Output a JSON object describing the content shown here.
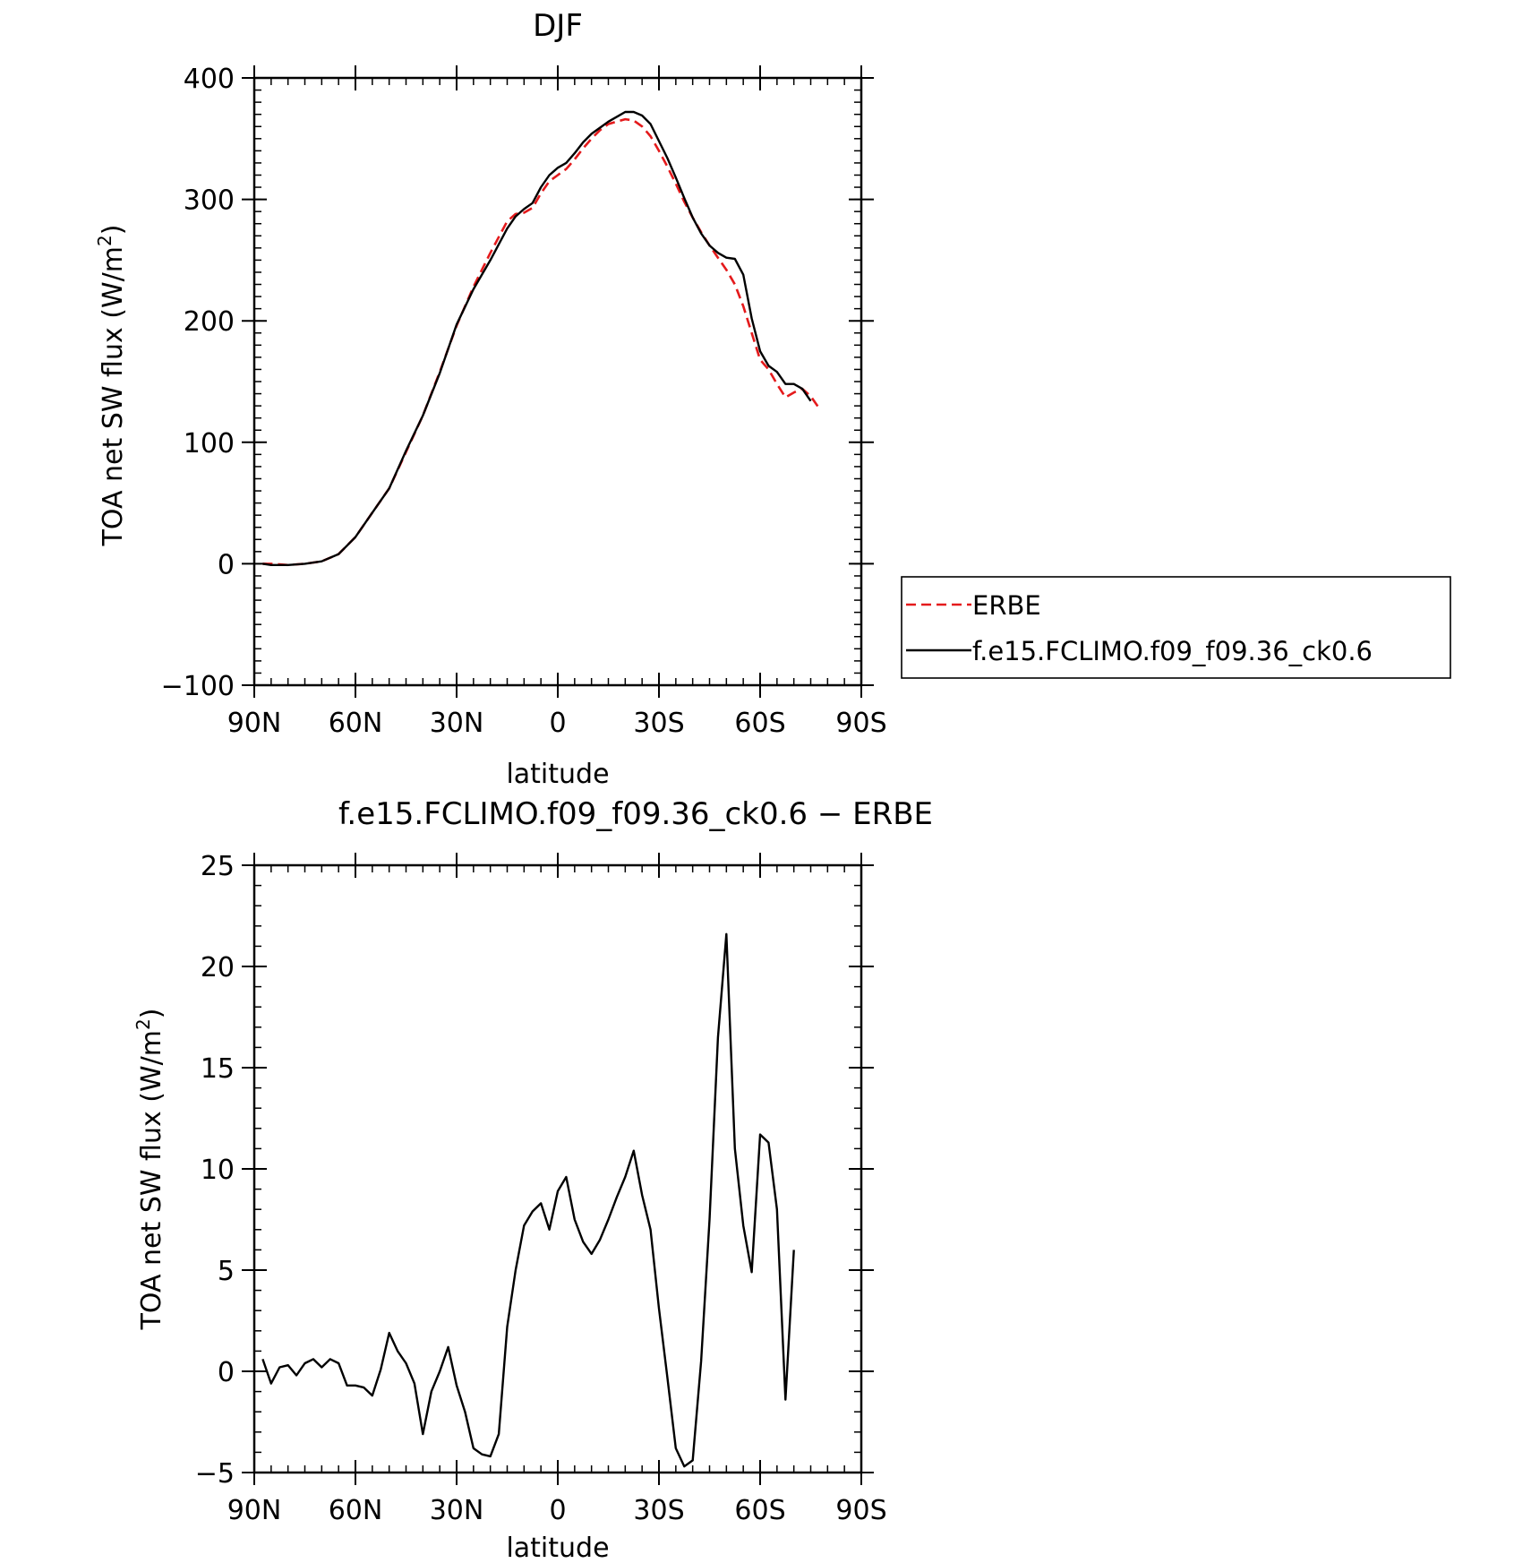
{
  "chart_data": [
    {
      "type": "line",
      "title": "DJF",
      "xlabel": "latitude",
      "ylabel": "TOA net SW flux (W/m²)",
      "ylabel_main": "TOA net SW flux (W/m",
      "ylabel_sup": "2",
      "ylabel_end": ")",
      "xlim": [
        -90,
        90
      ],
      "ylim": [
        -100,
        400
      ],
      "x_ticks": [
        {
          "value": -90,
          "label": "90N"
        },
        {
          "value": -60,
          "label": "60N"
        },
        {
          "value": -30,
          "label": "30N"
        },
        {
          "value": 0,
          "label": "0"
        },
        {
          "value": 30,
          "label": "30S"
        },
        {
          "value": 60,
          "label": "60S"
        },
        {
          "value": 90,
          "label": "90S"
        }
      ],
      "y_ticks": [
        {
          "value": -100,
          "label": "−100"
        },
        {
          "value": 0,
          "label": "0"
        },
        {
          "value": 100,
          "label": "100"
        },
        {
          "value": 200,
          "label": "200"
        },
        {
          "value": 300,
          "label": "300"
        },
        {
          "value": 400,
          "label": "400"
        }
      ],
      "legend": "right",
      "series": [
        {
          "name": "ERBE",
          "color": "#e41a1c",
          "dash": true,
          "points": [
            [
              -87.5,
              0
            ],
            [
              -85,
              0
            ],
            [
              -80,
              -1
            ],
            [
              -75,
              0
            ],
            [
              -70,
              2
            ],
            [
              -65,
              8
            ],
            [
              -60,
              22
            ],
            [
              -55,
              42
            ],
            [
              -50,
              62
            ],
            [
              -45,
              92
            ],
            [
              -40,
              122
            ],
            [
              -35,
              158
            ],
            [
              -30,
              196
            ],
            [
              -25,
              228
            ],
            [
              -20,
              256
            ],
            [
              -15,
              282
            ],
            [
              -12.5,
              288
            ],
            [
              -10,
              289
            ],
            [
              -7.5,
              293
            ],
            [
              -5,
              305
            ],
            [
              -2.5,
              315
            ],
            [
              0,
              320
            ],
            [
              2.5,
              325
            ],
            [
              5,
              333
            ],
            [
              7.5,
              342
            ],
            [
              10,
              350
            ],
            [
              12.5,
              357
            ],
            [
              15,
              362
            ],
            [
              17.5,
              364
            ],
            [
              20,
              366
            ],
            [
              22.5,
              365
            ],
            [
              25,
              360
            ],
            [
              27.5,
              352
            ],
            [
              30,
              340
            ],
            [
              32.5,
              327
            ],
            [
              35,
              313
            ],
            [
              37.5,
              298
            ],
            [
              40,
              285
            ],
            [
              42.5,
              273
            ],
            [
              45,
              262
            ],
            [
              47.5,
              252
            ],
            [
              50,
              242
            ],
            [
              52.5,
              230
            ],
            [
              55,
              212
            ],
            [
              57.5,
              190
            ],
            [
              60,
              168
            ],
            [
              62.5,
              160
            ],
            [
              65,
              148
            ],
            [
              67.5,
              137
            ],
            [
              70,
              141
            ],
            [
              72.5,
              144
            ],
            [
              75,
              138
            ],
            [
              77.5,
              128
            ]
          ]
        },
        {
          "name": "f.e15.FCLIMO.f09_f09.36_ck0.6",
          "color": "#000000",
          "dash": false,
          "points": [
            [
              -87.5,
              0
            ],
            [
              -85,
              -1
            ],
            [
              -80,
              -1
            ],
            [
              -75,
              0
            ],
            [
              -70,
              2
            ],
            [
              -65,
              8
            ],
            [
              -60,
              22
            ],
            [
              -55,
              42
            ],
            [
              -50,
              62
            ],
            [
              -45,
              93
            ],
            [
              -40,
              122
            ],
            [
              -35,
              157
            ],
            [
              -30,
              197
            ],
            [
              -25,
              226
            ],
            [
              -20,
              250
            ],
            [
              -15,
              276
            ],
            [
              -12.5,
              286
            ],
            [
              -10,
              292
            ],
            [
              -7.5,
              297
            ],
            [
              -5,
              310
            ],
            [
              -2.5,
              320
            ],
            [
              0,
              326
            ],
            [
              2.5,
              330
            ],
            [
              5,
              338
            ],
            [
              7.5,
              347
            ],
            [
              10,
              354
            ],
            [
              12.5,
              359
            ],
            [
              15,
              364
            ],
            [
              17.5,
              368
            ],
            [
              20,
              372
            ],
            [
              22.5,
              372
            ],
            [
              25,
              369
            ],
            [
              27.5,
              362
            ],
            [
              30,
              348
            ],
            [
              32.5,
              334
            ],
            [
              35,
              318
            ],
            [
              37.5,
              301
            ],
            [
              40,
              285
            ],
            [
              42.5,
              272
            ],
            [
              45,
              262
            ],
            [
              47.5,
              256
            ],
            [
              50,
              252
            ],
            [
              52.5,
              251
            ],
            [
              55,
              238
            ],
            [
              57.5,
              202
            ],
            [
              60,
              175
            ],
            [
              62.5,
              163
            ],
            [
              65,
              158
            ],
            [
              67.5,
              148
            ],
            [
              70,
              148
            ],
            [
              72.5,
              144
            ],
            [
              75,
              134
            ]
          ]
        }
      ]
    },
    {
      "type": "line",
      "title": "f.e15.FCLIMO.f09_f09.36_ck0.6 − ERBE",
      "xlabel": "latitude",
      "ylabel": "TOA net SW flux (W/m²)",
      "ylabel_main": "TOA net SW flux (W/m",
      "ylabel_sup": "2",
      "ylabel_end": ")",
      "xlim": [
        -90,
        90
      ],
      "ylim": [
        -5,
        25
      ],
      "x_ticks": [
        {
          "value": -90,
          "label": "90N"
        },
        {
          "value": -60,
          "label": "60N"
        },
        {
          "value": -30,
          "label": "30N"
        },
        {
          "value": 0,
          "label": "0"
        },
        {
          "value": 30,
          "label": "30S"
        },
        {
          "value": 60,
          "label": "60S"
        },
        {
          "value": 90,
          "label": "90S"
        }
      ],
      "y_ticks": [
        {
          "value": -5,
          "label": "−5"
        },
        {
          "value": 0,
          "label": "0"
        },
        {
          "value": 5,
          "label": "5"
        },
        {
          "value": 10,
          "label": "10"
        },
        {
          "value": 15,
          "label": "15"
        },
        {
          "value": 20,
          "label": "20"
        },
        {
          "value": 25,
          "label": "25"
        }
      ],
      "series": [
        {
          "name": "",
          "color": "#000000",
          "dash": false,
          "points": [
            [
              -87.5,
              0.6
            ],
            [
              -85,
              -0.6
            ],
            [
              -82.5,
              0.2
            ],
            [
              -80,
              0.3
            ],
            [
              -77.5,
              -0.2
            ],
            [
              -75,
              0.4
            ],
            [
              -72.5,
              0.6
            ],
            [
              -70,
              0.2
            ],
            [
              -67.5,
              0.6
            ],
            [
              -65,
              0.4
            ],
            [
              -62.5,
              -0.7
            ],
            [
              -60,
              -0.7
            ],
            [
              -57.5,
              -0.8
            ],
            [
              -55,
              -1.2
            ],
            [
              -52.5,
              0.1
            ],
            [
              -50,
              1.9
            ],
            [
              -47.5,
              1.0
            ],
            [
              -45,
              0.4
            ],
            [
              -42.5,
              -0.6
            ],
            [
              -40,
              -3.1
            ],
            [
              -37.5,
              -1.0
            ],
            [
              -35,
              0.0
            ],
            [
              -32.5,
              1.2
            ],
            [
              -30,
              -0.7
            ],
            [
              -27.5,
              -2.0
            ],
            [
              -25,
              -3.8
            ],
            [
              -22.5,
              -4.1
            ],
            [
              -20,
              -4.2
            ],
            [
              -17.5,
              -3.1
            ],
            [
              -15,
              2.2
            ],
            [
              -12.5,
              5.0
            ],
            [
              -10,
              7.2
            ],
            [
              -7.5,
              7.9
            ],
            [
              -5,
              8.3
            ],
            [
              -2.5,
              7.0
            ],
            [
              0,
              8.9
            ],
            [
              2.5,
              9.6
            ],
            [
              5,
              7.5
            ],
            [
              7.5,
              6.4
            ],
            [
              10,
              5.8
            ],
            [
              12.5,
              6.5
            ],
            [
              15,
              7.5
            ],
            [
              17.5,
              8.6
            ],
            [
              20,
              9.6
            ],
            [
              22.5,
              10.9
            ],
            [
              25,
              8.7
            ],
            [
              27.5,
              7.0
            ],
            [
              30,
              3.1
            ],
            [
              32.5,
              -0.3
            ],
            [
              35,
              -3.8
            ],
            [
              37.5,
              -4.7
            ],
            [
              40,
              -4.4
            ],
            [
              42.5,
              0.5
            ],
            [
              45,
              7.5
            ],
            [
              47.5,
              16.5
            ],
            [
              50,
              21.6
            ],
            [
              52.5,
              11.0
            ],
            [
              55,
              7.2
            ],
            [
              57.5,
              4.9
            ],
            [
              60,
              11.7
            ],
            [
              62.5,
              11.3
            ],
            [
              65,
              8.0
            ],
            [
              67.5,
              -1.4
            ],
            [
              70,
              6.0
            ]
          ]
        }
      ]
    }
  ]
}
